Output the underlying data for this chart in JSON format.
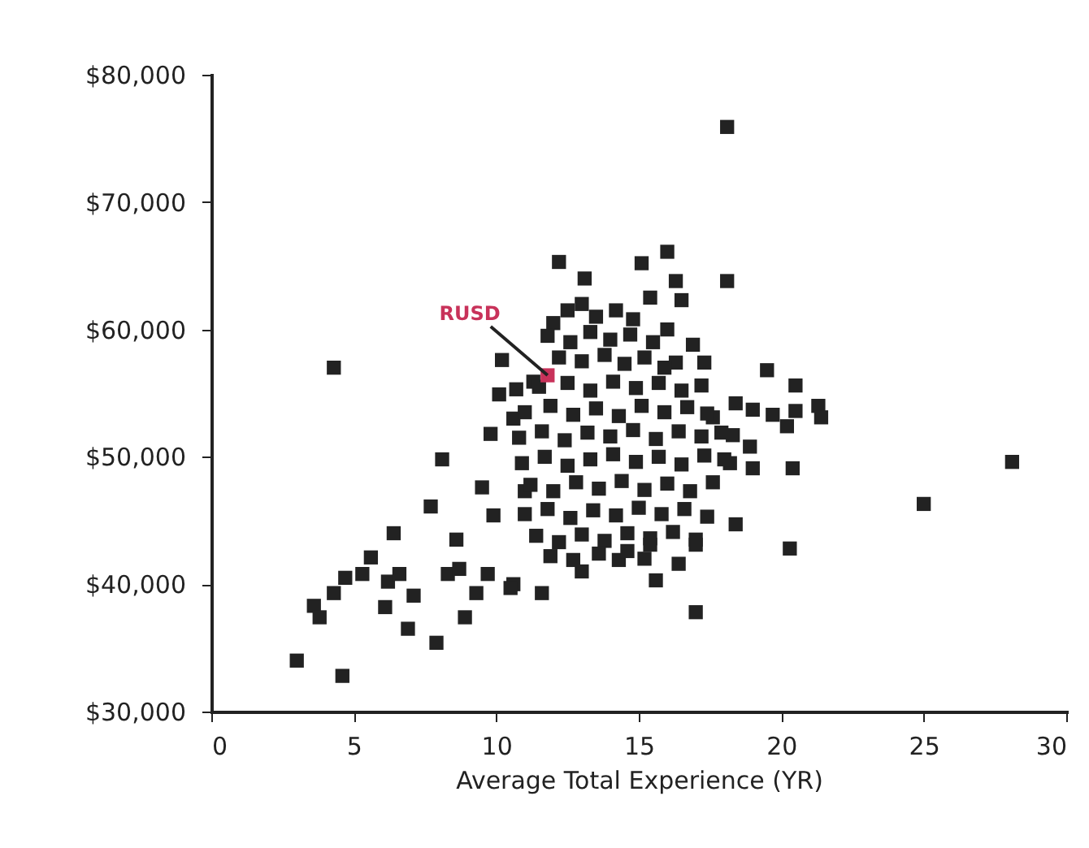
{
  "chart_data": {
    "type": "scatter",
    "xlabel": "Average Total Experience (YR)",
    "xlim": [
      0,
      30
    ],
    "xticks": [
      0,
      5,
      10,
      15,
      20,
      25,
      30
    ],
    "ylim": [
      30000,
      80000
    ],
    "yticks": [
      {
        "value": 30000,
        "label": "$30,000"
      },
      {
        "value": 40000,
        "label": "$40,000"
      },
      {
        "value": 50000,
        "label": "$50,000"
      },
      {
        "value": 60000,
        "label": "$60,000"
      },
      {
        "value": 70000,
        "label": "$70,000"
      },
      {
        "value": 80000,
        "label": "$80,000"
      }
    ],
    "grid": false,
    "marker": "square",
    "annotations": [
      {
        "text": "RUSD",
        "x": 11.8,
        "y": 56400
      }
    ],
    "series": [
      {
        "color": "#222222",
        "x": [
          3.0,
          4.6,
          3.6,
          3.8,
          4.3,
          4.7,
          5.3,
          5.6,
          6.4,
          6.2,
          6.6,
          6.1,
          7.1,
          6.9,
          7.9,
          4.3,
          8.1,
          7.7,
          8.6,
          8.3,
          8.7,
          8.9,
          9.3,
          9.7,
          9.5,
          9.9,
          10.2,
          10.1,
          10.7,
          11.3,
          12.2,
          13.1,
          10.6,
          9.8,
          11.0,
          10.6,
          11.6,
          16.0,
          15.1,
          16.3,
          18.1,
          16.5,
          15.4,
          16.9,
          17.3,
          16.3,
          19.5,
          20.5,
          18.4,
          19.0,
          19.7,
          20.2,
          20.5,
          21.3,
          21.4,
          17.6,
          18.3,
          18.9,
          19.0,
          20.4,
          18.2,
          18.1,
          25.0,
          28.1,
          20.3,
          17.0,
          18.4,
          10.5,
          13.0,
          14.3,
          15.6,
          16.4,
          17.0,
          15.4,
          12.5,
          13.0,
          13.5,
          14.2,
          14.8,
          12.0,
          11.8,
          12.6,
          13.3,
          14.0,
          14.7,
          15.5,
          16.0,
          12.2,
          13.0,
          13.8,
          14.5,
          15.2,
          15.9,
          11.5,
          12.5,
          13.3,
          14.1,
          14.9,
          15.7,
          16.5,
          17.2,
          11.0,
          11.9,
          12.7,
          13.5,
          14.3,
          15.1,
          15.9,
          16.7,
          17.4,
          10.8,
          11.6,
          12.4,
          13.2,
          14.0,
          14.8,
          15.6,
          16.4,
          17.2,
          17.9,
          10.9,
          11.7,
          12.5,
          13.3,
          14.1,
          14.9,
          15.7,
          16.5,
          17.3,
          18.0,
          11.2,
          12.0,
          12.8,
          13.6,
          14.4,
          15.2,
          16.0,
          16.8,
          17.6,
          11.0,
          11.8,
          12.6,
          13.4,
          14.2,
          15.0,
          15.8,
          16.6,
          17.4,
          11.4,
          12.2,
          13.0,
          13.8,
          14.6,
          15.4,
          16.2,
          17.0,
          11.9,
          12.7,
          13.6,
          14.6,
          15.2
        ],
        "values": [
          34000,
          32800,
          38300,
          37400,
          39300,
          40500,
          40800,
          42100,
          44000,
          40200,
          40800,
          38200,
          39100,
          36500,
          35400,
          57000,
          49800,
          46100,
          43500,
          40800,
          41200,
          37400,
          39300,
          40800,
          47600,
          45400,
          57600,
          54900,
          55300,
          55900,
          65300,
          64000,
          53000,
          51800,
          47300,
          40000,
          39300,
          66100,
          65200,
          63800,
          63800,
          62300,
          62500,
          58800,
          57400,
          57400,
          56800,
          55600,
          54200,
          53700,
          53300,
          52400,
          53600,
          54000,
          53100,
          53100,
          51700,
          50800,
          49100,
          49100,
          49500,
          75900,
          46300,
          49600,
          42800,
          37800,
          44700,
          39700,
          41000,
          41900,
          40300,
          41600,
          43100,
          43100,
          61500,
          62000,
          61000,
          61500,
          60800,
          60500,
          59500,
          59000,
          59800,
          59200,
          59600,
          59000,
          60000,
          57800,
          57500,
          58000,
          57300,
          57800,
          57000,
          55500,
          55800,
          55200,
          55900,
          55400,
          55800,
          55200,
          55600,
          53500,
          54000,
          53300,
          53800,
          53200,
          54000,
          53500,
          53900,
          53400,
          51500,
          52000,
          51300,
          51900,
          51600,
          52100,
          51400,
          52000,
          51600,
          51900,
          49500,
          50000,
          49300,
          49800,
          50200,
          49600,
          50000,
          49400,
          50100,
          49800,
          47800,
          47300,
          48000,
          47500,
          48100,
          47400,
          47900,
          47300,
          48000,
          45500,
          45900,
          45200,
          45800,
          45400,
          46000,
          45500,
          45900,
          45300,
          43800,
          43300,
          43900,
          43400,
          44000,
          43600,
          44100,
          43500,
          42200,
          41900,
          42400,
          42600,
          42000
        ]
      },
      {
        "color": "#c8325a",
        "x": [
          11.8
        ],
        "values": [
          56400
        ]
      }
    ]
  }
}
